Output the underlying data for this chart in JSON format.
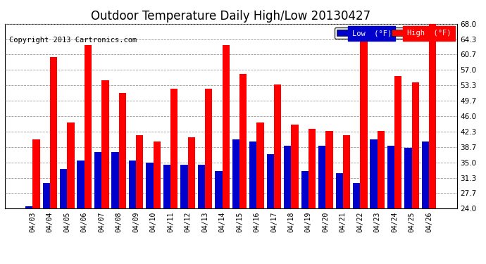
{
  "title": "Outdoor Temperature Daily High/Low 20130427",
  "copyright": "Copyright 2013 Cartronics.com",
  "categories": [
    "04/03",
    "04/04",
    "04/05",
    "04/06",
    "04/07",
    "04/08",
    "04/09",
    "04/10",
    "04/11",
    "04/12",
    "04/13",
    "04/14",
    "04/15",
    "04/16",
    "04/17",
    "04/18",
    "04/19",
    "04/20",
    "04/21",
    "04/22",
    "04/23",
    "04/24",
    "04/25",
    "04/26"
  ],
  "high": [
    40.5,
    60.0,
    44.5,
    63.0,
    54.5,
    51.5,
    41.5,
    40.0,
    52.5,
    41.0,
    52.5,
    63.0,
    56.0,
    44.5,
    53.5,
    44.0,
    43.0,
    42.5,
    41.5,
    65.5,
    42.5,
    55.5,
    54.0,
    68.0
  ],
  "low": [
    24.5,
    30.0,
    33.5,
    35.5,
    37.5,
    37.5,
    35.5,
    35.0,
    34.5,
    34.5,
    34.5,
    33.0,
    40.5,
    40.0,
    37.0,
    39.0,
    33.0,
    39.0,
    32.5,
    30.0,
    40.5,
    39.0,
    38.5,
    40.0
  ],
  "ymin": 24.0,
  "high_color": "#ff0000",
  "low_color": "#0000cc",
  "bg_color": "#ffffff",
  "grid_color": "#999999",
  "ylim": [
    24.0,
    68.0
  ],
  "yticks": [
    24.0,
    27.7,
    31.3,
    35.0,
    38.7,
    42.3,
    46.0,
    49.7,
    53.3,
    57.0,
    60.7,
    64.3,
    68.0
  ],
  "title_fontsize": 12,
  "copyright_fontsize": 7.5,
  "legend_low_label": "Low  (°F)",
  "legend_high_label": "High  (°F)"
}
